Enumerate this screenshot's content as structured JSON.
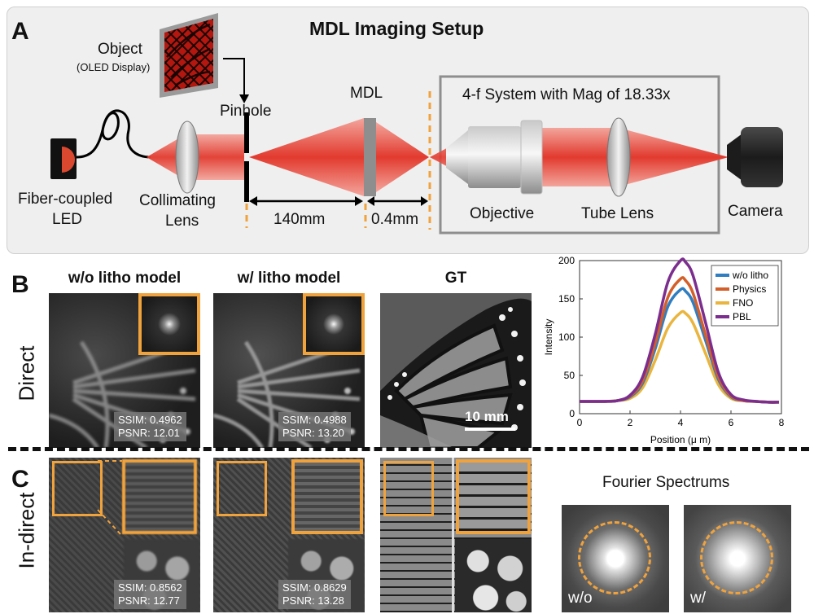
{
  "panel_a": {
    "letter": "A",
    "title": "MDL Imaging Setup",
    "object_label": "Object",
    "object_sublabel": "(OLED Display)",
    "pinhole_label": "Pinhole",
    "mdl_label": "MDL",
    "four_f_label": "4-f System with Mag of 18.33x",
    "fiber_label_1": "Fiber-coupled",
    "fiber_label_2": "LED",
    "collimating_label_1": "Collimating",
    "collimating_label_2": "Lens",
    "distance_1": "140mm",
    "distance_2": "0.4mm",
    "objective_label": "Objective",
    "tube_lens_label": "Tube Lens",
    "camera_label": "Camera"
  },
  "panel_b": {
    "letter": "B",
    "row_label": "Direct",
    "col1_title": "w/o litho model",
    "col2_title": "w/ litho model",
    "col3_title": "GT",
    "m1_ssim": "SSIM: 0.4962",
    "m1_psnr": "PSNR: 12.01",
    "m2_ssim": "SSIM: 0.4988",
    "m2_psnr": "PSNR: 13.20",
    "scalebar": "10 mm"
  },
  "panel_c": {
    "letter": "C",
    "row_label": "In-direct",
    "m1_ssim": "SSIM: 0.8562",
    "m1_psnr": "PSNR: 12.77",
    "m2_ssim": "SSIM: 0.8629",
    "m2_psnr": "PSNR: 13.28",
    "fourier_title": "Fourier Spectrums",
    "fourier_wo": "w/o",
    "fourier_w": "w/"
  },
  "chart_data": {
    "type": "line",
    "title": "",
    "xlabel": "Position (μ m)",
    "ylabel": "Intensity",
    "xlim": [
      0,
      8
    ],
    "ylim": [
      0,
      200
    ],
    "xticks": [
      0,
      2,
      4,
      6,
      8
    ],
    "yticks": [
      0,
      50,
      100,
      150,
      200
    ],
    "x": [
      0,
      0.5,
      1,
      1.5,
      2,
      2.5,
      3,
      3.5,
      4,
      4.2,
      4.5,
      5,
      5.5,
      6,
      6.5,
      7,
      7.5,
      7.9
    ],
    "legend_position": "top-right",
    "series": [
      {
        "name": "w/o litho",
        "color": "#2f7ec1",
        "values": [
          16,
          16,
          16,
          17,
          22,
          40,
          85,
          140,
          162,
          160,
          145,
          95,
          45,
          22,
          17,
          16,
          15,
          15
        ]
      },
      {
        "name": "Physics",
        "color": "#d35f2b",
        "values": [
          16,
          16,
          16,
          17,
          23,
          43,
          92,
          152,
          176,
          174,
          157,
          102,
          48,
          23,
          17,
          16,
          15,
          15
        ]
      },
      {
        "name": "FNO",
        "color": "#e9b53e",
        "values": [
          16,
          16,
          16,
          17,
          20,
          34,
          70,
          112,
          132,
          131,
          118,
          78,
          38,
          20,
          17,
          16,
          15,
          15
        ]
      },
      {
        "name": "PBL",
        "color": "#7b2e8e",
        "values": [
          16,
          16,
          16,
          17,
          24,
          48,
          104,
          172,
          200,
          198,
          180,
          118,
          54,
          25,
          18,
          16,
          15,
          15
        ]
      }
    ]
  }
}
